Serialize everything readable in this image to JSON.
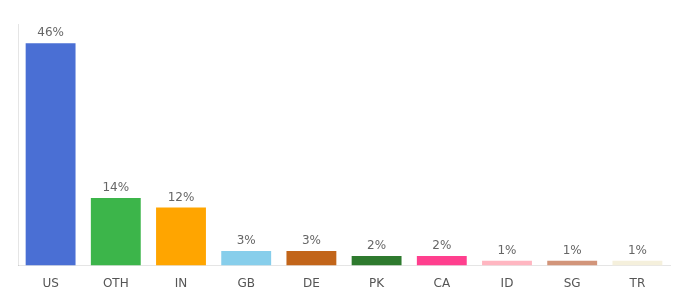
{
  "chart_data": {
    "type": "bar",
    "categories": [
      "US",
      "OTH",
      "IN",
      "GB",
      "DE",
      "PK",
      "CA",
      "ID",
      "SG",
      "TR"
    ],
    "values": [
      46,
      14,
      12,
      3,
      3,
      2,
      2,
      1,
      1,
      1
    ],
    "value_labels": [
      "46%",
      "14%",
      "12%",
      "3%",
      "3%",
      "2%",
      "2%",
      "1%",
      "1%",
      "1%"
    ],
    "colors": [
      "#4A6FD4",
      "#3CB54A",
      "#FFA500",
      "#87CEEB",
      "#C2651A",
      "#2E7A2E",
      "#FF3F8E",
      "#FFB6C1",
      "#D2957A",
      "#F5F0DC"
    ],
    "ylim": [
      0,
      50
    ],
    "grid": false,
    "data_labels": true,
    "tick_labels": "x"
  }
}
